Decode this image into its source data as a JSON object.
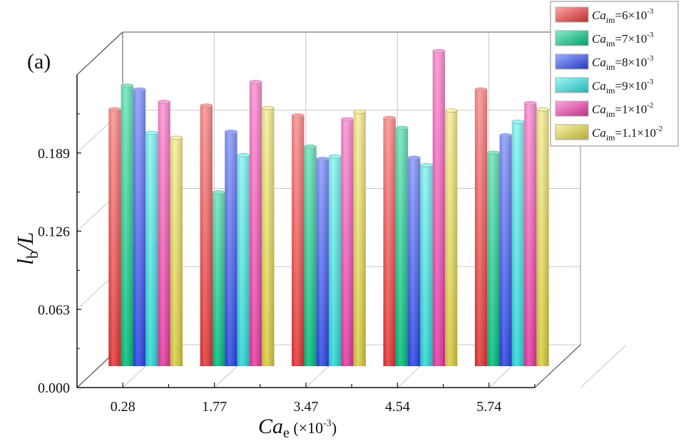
{
  "chart_data": {
    "type": "bar",
    "style": "3d-cylinder",
    "panel_label": "(a)",
    "xlabel": {
      "var": "Ca",
      "sub": "e",
      "unit": " (×10",
      "exp": "-3",
      "close": ")"
    },
    "ylabel": {
      "var": "l",
      "sub": "b",
      "rest": "/L"
    },
    "categories": [
      "0.28",
      "1.77",
      "3.47",
      "4.54",
      "5.74"
    ],
    "yticks": [
      "0.000",
      "0.063",
      "0.126",
      "0.189"
    ],
    "ylim": [
      0,
      0.252
    ],
    "grid": true,
    "legend_position": "top-right",
    "series": [
      {
        "name": "Ca_im=6×10^-3",
        "label": {
          "var": "Ca",
          "sub": "im",
          "text": "=6×10",
          "exp": "-3"
        },
        "color": "#ff3a3a",
        "values": [
          0.207,
          0.21,
          0.202,
          0.2,
          0.223
        ]
      },
      {
        "name": "Ca_im=7×10^-3",
        "label": {
          "var": "Ca",
          "sub": "im",
          "text": "=7×10",
          "exp": "-3"
        },
        "color": "#00d48a",
        "values": [
          0.226,
          0.14,
          0.177,
          0.192,
          0.172
        ]
      },
      {
        "name": "Ca_im=8×10^-3",
        "label": {
          "var": "Ca",
          "sub": "im",
          "text": "=8×10",
          "exp": "-3"
        },
        "color": "#2f4dff",
        "values": [
          0.223,
          0.189,
          0.167,
          0.168,
          0.186
        ]
      },
      {
        "name": "Ca_im=9×10^-3",
        "label": {
          "var": "Ca",
          "sub": "im",
          "text": "=9×10",
          "exp": "-3"
        },
        "color": "#2ff0ef",
        "values": [
          0.188,
          0.17,
          0.169,
          0.162,
          0.197
        ]
      },
      {
        "name": "Ca_im=1×10^-2",
        "label": {
          "var": "Ca",
          "sub": "im",
          "text": "=1×10",
          "exp": "-2"
        },
        "color": "#ff3fb4",
        "values": [
          0.213,
          0.229,
          0.199,
          0.254,
          0.212
        ]
      },
      {
        "name": "Ca_im=1.1×10^-2",
        "label": {
          "var": "Ca",
          "sub": "im",
          "text": "=1.1×10",
          "exp": "-2"
        },
        "color": "#f2e445",
        "values": [
          0.184,
          0.208,
          0.205,
          0.206,
          0.207
        ]
      }
    ]
  }
}
